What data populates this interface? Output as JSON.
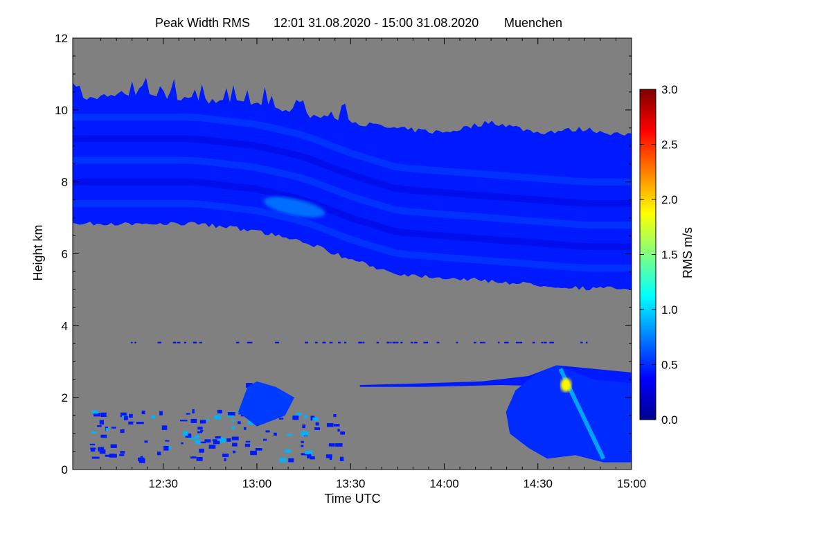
{
  "chart_data": {
    "type": "heatmap",
    "title": "Peak Width RMS",
    "time_range": "12:01 31.08.2020 - 15:00 31.08.2020",
    "location": "Muenchen",
    "xlabel": "Time UTC",
    "ylabel": "Height km",
    "x_ticks": [
      "12:30",
      "13:00",
      "13:30",
      "14:00",
      "14:30",
      "15:00"
    ],
    "x_tick_hours": [
      12.5,
      13.0,
      13.5,
      14.0,
      14.5,
      15.0
    ],
    "xlim": [
      "12:01",
      "15:00"
    ],
    "y_ticks": [
      0,
      2,
      4,
      6,
      8,
      10,
      12
    ],
    "ylim": [
      0,
      12
    ],
    "background_color": "#808080",
    "colorbar": {
      "label": "RMS m/s",
      "ticks": [
        "0.0",
        "0.5",
        "1.0",
        "1.5",
        "2.0",
        "2.5",
        "3.0"
      ],
      "range": [
        0,
        3
      ],
      "colormap": [
        "#00008f",
        "#0000ff",
        "#0080ff",
        "#00ffff",
        "#80ff80",
        "#ffff00",
        "#ff8000",
        "#ff0000",
        "#800000"
      ]
    },
    "upper_layer": {
      "description": "cirrus band",
      "points": [
        {
          "t": "12:01",
          "base_km": 6.9,
          "top_km": 10.2,
          "rms": 0.45
        },
        {
          "t": "12:20",
          "base_km": 6.9,
          "top_km": 10.4,
          "rms": 0.45
        },
        {
          "t": "12:40",
          "base_km": 6.9,
          "top_km": 10.2,
          "rms": 0.45
        },
        {
          "t": "13:00",
          "base_km": 6.7,
          "top_km": 10.1,
          "rms": 0.5
        },
        {
          "t": "13:15",
          "base_km": 6.4,
          "top_km": 9.8,
          "rms": 0.55
        },
        {
          "t": "13:30",
          "base_km": 5.9,
          "top_km": 9.6,
          "rms": 0.5
        },
        {
          "t": "13:45",
          "base_km": 5.5,
          "top_km": 9.4,
          "rms": 0.45
        },
        {
          "t": "14:00",
          "base_km": 5.4,
          "top_km": 9.3,
          "rms": 0.45
        },
        {
          "t": "14:15",
          "base_km": 5.3,
          "top_km": 9.6,
          "rms": 0.45
        },
        {
          "t": "14:30",
          "base_km": 5.2,
          "top_km": 9.3,
          "rms": 0.45
        },
        {
          "t": "14:45",
          "base_km": 5.1,
          "top_km": 9.4,
          "rms": 0.45
        },
        {
          "t": "15:00",
          "base_km": 5.1,
          "top_km": 9.2,
          "rms": 0.45
        }
      ]
    }
  }
}
